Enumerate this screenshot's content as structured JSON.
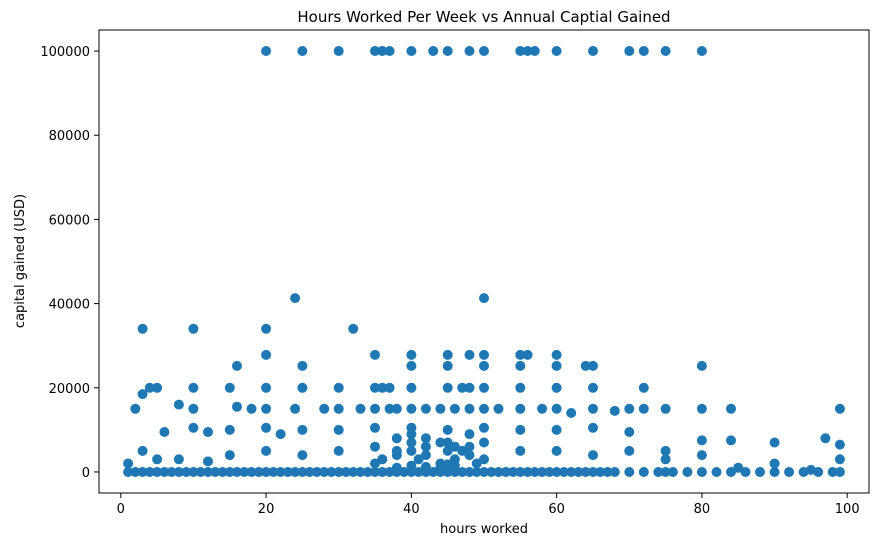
{
  "chart_data": {
    "type": "scatter",
    "title": "Hours Worked Per Week vs Annual Captial Gained",
    "xlabel": "hours worked",
    "ylabel": "capital gained (USD)",
    "xlim": [
      -3,
      103
    ],
    "ylim": [
      -5000,
      105000
    ],
    "xticks": [
      0,
      20,
      40,
      60,
      80,
      100
    ],
    "yticks": [
      0,
      20000,
      40000,
      60000,
      80000,
      100000
    ],
    "xtick_labels": [
      "0",
      "20",
      "40",
      "60",
      "80",
      "100"
    ],
    "ytick_labels": [
      "0",
      "20000",
      "40000",
      "60000",
      "80000",
      "100000"
    ],
    "grid": false,
    "legend": "none",
    "marker_color": "#1f77b4",
    "series": [
      {
        "x": [
          20,
          25,
          30,
          35,
          36,
          37,
          40,
          43,
          45,
          48,
          50,
          55,
          56,
          57,
          60,
          65,
          70,
          72,
          75,
          80,
          24,
          50,
          3,
          10,
          20,
          32,
          20,
          35,
          40,
          45,
          48,
          50,
          55,
          56,
          60,
          16,
          25,
          40,
          45,
          50,
          55,
          60,
          64,
          65,
          80,
          4,
          5,
          10,
          15,
          20,
          25,
          30,
          35,
          36,
          37,
          40,
          45,
          47,
          48,
          50,
          55,
          60,
          65,
          72,
          2,
          3,
          8,
          10,
          16,
          18,
          20,
          24,
          28,
          30,
          33,
          35,
          37,
          38,
          40,
          42,
          44,
          46,
          48,
          50,
          52,
          55,
          58,
          60,
          62,
          65,
          68,
          70,
          72,
          75,
          80,
          84,
          99,
          6,
          10,
          12,
          15,
          20,
          22,
          25,
          30,
          35,
          40,
          45,
          50,
          55,
          60,
          65,
          70,
          75,
          80,
          84,
          90,
          97,
          99,
          1,
          2,
          3,
          4,
          5,
          6,
          7,
          8,
          9,
          10,
          11,
          12,
          13,
          14,
          15,
          16,
          17,
          18,
          19,
          20,
          21,
          22,
          23,
          24,
          25,
          26,
          27,
          28,
          29,
          30,
          31,
          32,
          33,
          34,
          35,
          36,
          37,
          38,
          39,
          40,
          41,
          42,
          43,
          44,
          45,
          46,
          47,
          48,
          49,
          50,
          51,
          52,
          53,
          54,
          55,
          56,
          57,
          58,
          59,
          60,
          61,
          62,
          63,
          64,
          65,
          66,
          67,
          68,
          70,
          72,
          74,
          75,
          76,
          78,
          80,
          82,
          84,
          86,
          88,
          90,
          92,
          94,
          96,
          98,
          99,
          1,
          3,
          5,
          8,
          12,
          15,
          20,
          25,
          30,
          35,
          38,
          40,
          42,
          45,
          48,
          50,
          55,
          60,
          65,
          70,
          75,
          80,
          85,
          90,
          95,
          99,
          35,
          36,
          38,
          40,
          41,
          42,
          44,
          45,
          46,
          47,
          48,
          49,
          50,
          38,
          40,
          42,
          44,
          46,
          48,
          38,
          40,
          42,
          44,
          45,
          46
        ],
        "y": [
          100000,
          100000,
          100000,
          100000,
          100000,
          100000,
          100000,
          100000,
          100000,
          100000,
          100000,
          100000,
          100000,
          100000,
          100000,
          100000,
          100000,
          100000,
          100000,
          100000,
          41300,
          41300,
          34000,
          34000,
          34000,
          34000,
          27800,
          27800,
          27800,
          27800,
          27800,
          27800,
          27800,
          27800,
          27800,
          25200,
          25200,
          25200,
          25200,
          25200,
          25200,
          25200,
          25200,
          25200,
          25200,
          20000,
          20000,
          20000,
          20000,
          20000,
          20000,
          20000,
          20000,
          20000,
          20000,
          20000,
          20000,
          20000,
          20000,
          20000,
          20000,
          20000,
          20000,
          20000,
          15000,
          18500,
          16000,
          15000,
          15500,
          15000,
          15000,
          15000,
          15000,
          15000,
          15000,
          15000,
          15000,
          15000,
          15000,
          15000,
          15000,
          15000,
          15000,
          15000,
          15000,
          15000,
          15000,
          15000,
          14000,
          15000,
          14500,
          15000,
          15000,
          15000,
          15000,
          15000,
          15000,
          9500,
          10500,
          9500,
          10000,
          10500,
          9000,
          10000,
          10000,
          10500,
          10500,
          10000,
          10500,
          10000,
          10000,
          10500,
          9500,
          5000,
          7500,
          7500,
          7000,
          8000,
          6500,
          0,
          0,
          0,
          0,
          0,
          0,
          0,
          0,
          0,
          0,
          0,
          0,
          0,
          0,
          0,
          0,
          0,
          0,
          0,
          0,
          0,
          0,
          0,
          0,
          0,
          0,
          0,
          0,
          0,
          0,
          0,
          0,
          0,
          0,
          0,
          0,
          0,
          0,
          0,
          0,
          0,
          0,
          0,
          0,
          0,
          0,
          0,
          0,
          0,
          0,
          0,
          0,
          0,
          0,
          0,
          0,
          0,
          0,
          0,
          0,
          0,
          0,
          0,
          0,
          0,
          0,
          0,
          0,
          0,
          0,
          0,
          0,
          0,
          0,
          0,
          0,
          0,
          0,
          0,
          0,
          0,
          0,
          0,
          0,
          0,
          2000,
          5000,
          3000,
          3000,
          2500,
          4000,
          5000,
          4000,
          5000,
          6000,
          5000,
          7000,
          6000,
          5000,
          6000,
          7000,
          5000,
          5000,
          4000,
          5000,
          3000,
          4000,
          1000,
          2000,
          500,
          3000,
          2000,
          3000,
          4000,
          5000,
          3000,
          4000,
          2000,
          7000,
          3000,
          5000,
          4000,
          2000,
          3000,
          8000,
          9000,
          8000,
          7000,
          6000,
          9000,
          1000,
          1500,
          1200,
          1000,
          1800,
          1500
        ]
      }
    ]
  }
}
